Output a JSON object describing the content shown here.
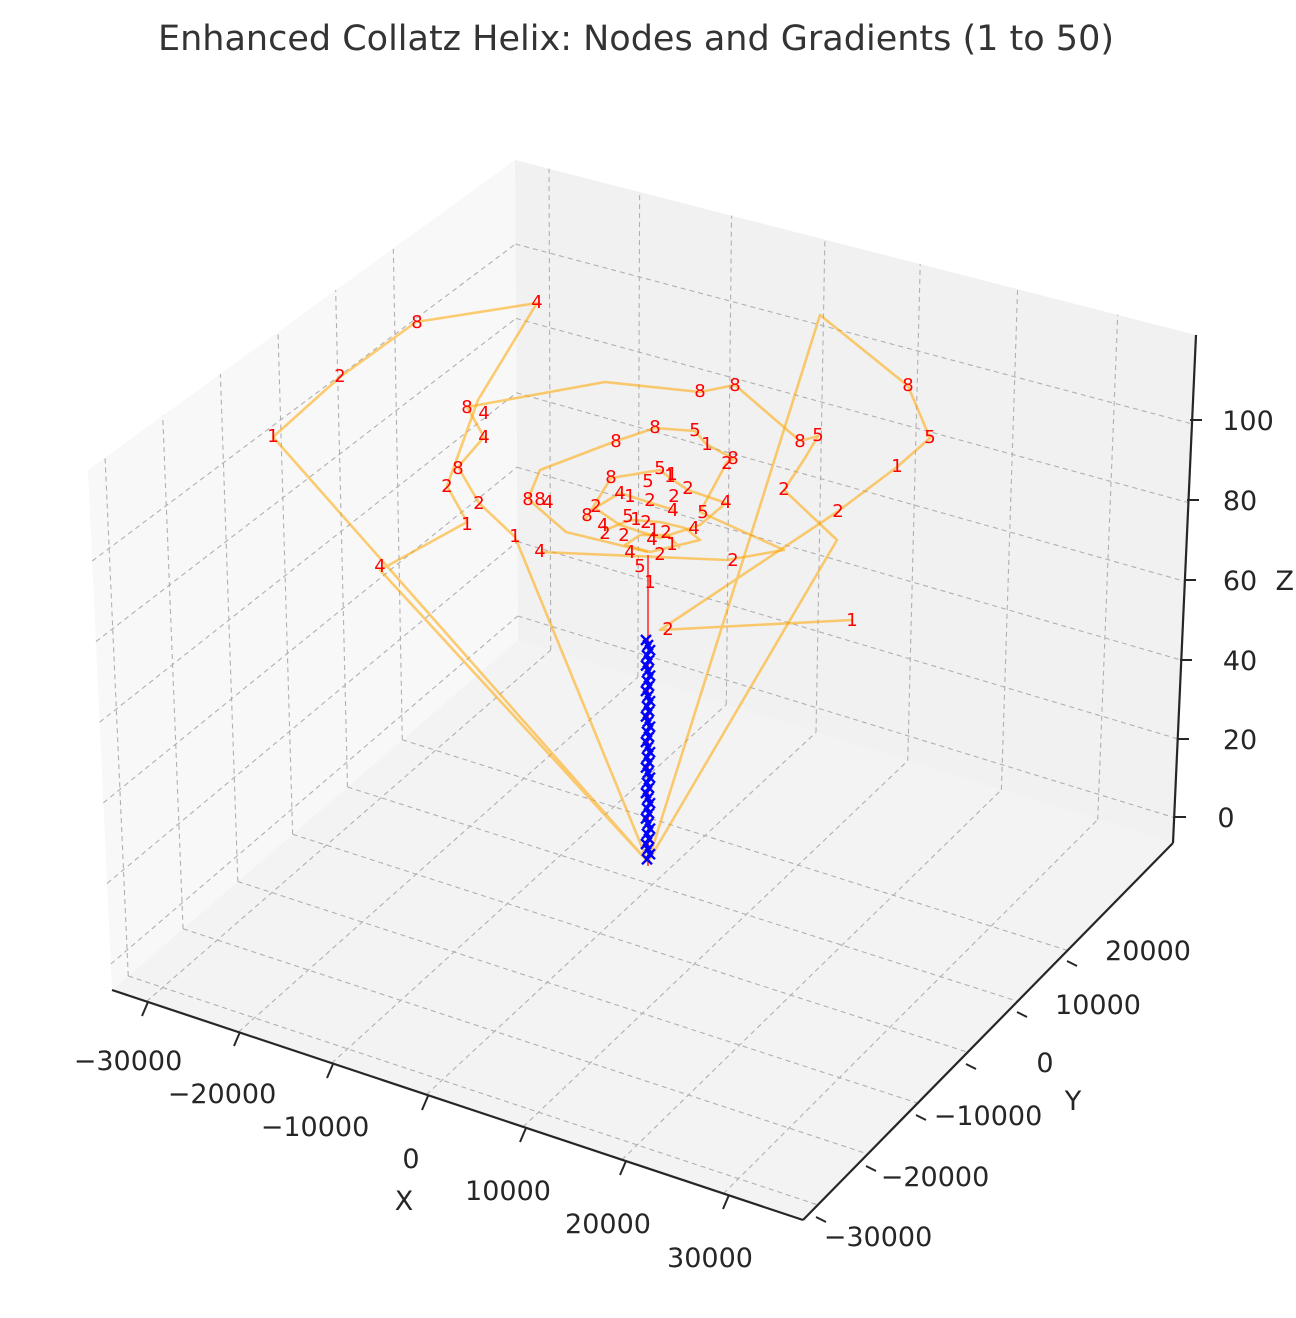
{
  "chart_data": {
    "type": "scatter3d-line",
    "title": "Enhanced Collatz Helix: Nodes and Gradients (1 to 50)",
    "xlabel": "X",
    "ylabel": "Y",
    "zlabel": "Z",
    "x_ticks": [
      "−30000",
      "−20000",
      "−10000",
      "0",
      "10000",
      "20000",
      "30000"
    ],
    "y_ticks": [
      "−30000",
      "−20000",
      "−10000",
      "0",
      "10000",
      "20000"
    ],
    "z_ticks": [
      "0",
      "20",
      "40",
      "60",
      "80",
      "100"
    ],
    "grid": true,
    "series": [
      {
        "name": "",
        "style": "orange polyline with red node labels"
      },
      {
        "name": "",
        "style": "blue x markers on central stem"
      }
    ],
    "node_labels": [
      {
        "text": "4"
      },
      {
        "text": "8"
      },
      {
        "text": "2"
      },
      {
        "text": "1"
      },
      {
        "text": "4"
      },
      {
        "text": "8"
      },
      {
        "text": "5"
      },
      {
        "text": "1"
      },
      {
        "text": "2"
      },
      {
        "text": "1"
      },
      {
        "text": "8"
      },
      {
        "text": "8"
      },
      {
        "text": "8"
      },
      {
        "text": "4"
      },
      {
        "text": "4"
      },
      {
        "text": "8"
      },
      {
        "text": "2"
      },
      {
        "text": "2"
      },
      {
        "text": "1"
      },
      {
        "text": "1"
      },
      {
        "text": "4"
      },
      {
        "text": "5"
      },
      {
        "text": "8"
      },
      {
        "text": "8"
      },
      {
        "text": "5"
      },
      {
        "text": "1"
      },
      {
        "text": "8"
      },
      {
        "text": "5"
      },
      {
        "text": "1"
      },
      {
        "text": "2"
      },
      {
        "text": "8"
      },
      {
        "text": "2"
      },
      {
        "text": "8"
      },
      {
        "text": "5"
      },
      {
        "text": "1"
      },
      {
        "text": "4"
      },
      {
        "text": "1"
      },
      {
        "text": "2"
      },
      {
        "text": "2"
      },
      {
        "text": "8"
      },
      {
        "text": "8"
      },
      {
        "text": "4"
      },
      {
        "text": "2"
      },
      {
        "text": "8"
      },
      {
        "text": "5"
      },
      {
        "text": "1"
      },
      {
        "text": "2"
      },
      {
        "text": "4"
      },
      {
        "text": "5"
      },
      {
        "text": "2"
      },
      {
        "text": "4"
      },
      {
        "text": "4"
      },
      {
        "text": "1"
      },
      {
        "text": "2"
      },
      {
        "text": "4"
      },
      {
        "text": "2"
      },
      {
        "text": "2"
      },
      {
        "text": "4"
      },
      {
        "text": "1"
      },
      {
        "text": "2"
      },
      {
        "text": "4"
      },
      {
        "text": "2"
      },
      {
        "text": "5"
      },
      {
        "text": "2"
      },
      {
        "text": "1"
      }
    ]
  }
}
